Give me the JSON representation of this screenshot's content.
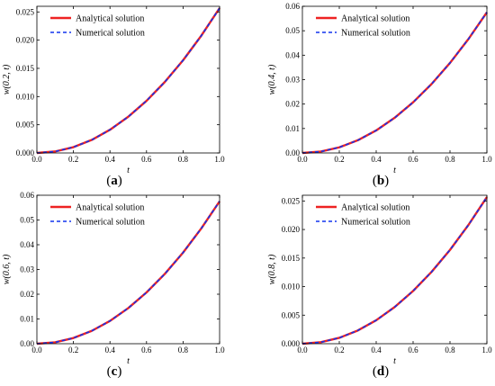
{
  "colors": {
    "analytical": "#ee2222",
    "numerical": "#1133ee",
    "axis": "#000000"
  },
  "chart_data": [
    {
      "type": "line",
      "panel_label": [
        "(",
        "a",
        ")"
      ],
      "xlabel": "t",
      "ylabel": "w(0.2, t)",
      "xlim": [
        0,
        1.0
      ],
      "ylim": [
        0,
        0.026
      ],
      "xticks": [
        "0.0",
        "0.2",
        "0.4",
        "0.6",
        "0.8",
        "1.0"
      ],
      "yticks": [
        "0.000",
        "0.005",
        "0.010",
        "0.015",
        "0.020",
        "0.025"
      ],
      "grid": false,
      "legend": "top-left",
      "x": [
        0,
        0.1,
        0.2,
        0.3,
        0.4,
        0.5,
        0.6,
        0.7,
        0.8,
        0.9,
        1.0
      ],
      "series": [
        {
          "name": "Analytical solution",
          "style": "solid",
          "values": [
            0,
            0.00026,
            0.00103,
            0.00231,
            0.00411,
            0.00642,
            0.00924,
            0.01258,
            0.01643,
            0.0208,
            0.02568
          ]
        },
        {
          "name": "Numerical solution",
          "style": "dashed",
          "values": [
            0,
            0.00026,
            0.00103,
            0.00231,
            0.00411,
            0.00642,
            0.00924,
            0.01258,
            0.01643,
            0.0208,
            0.02568
          ]
        }
      ]
    },
    {
      "type": "line",
      "panel_label": [
        "(",
        "b",
        ")"
      ],
      "xlabel": "t",
      "ylabel": "w(0.4, t)",
      "xlim": [
        0,
        1.0
      ],
      "ylim": [
        0,
        0.06
      ],
      "xticks": [
        "0.0",
        "0.2",
        "0.4",
        "0.6",
        "0.8",
        "1.0"
      ],
      "yticks": [
        "0.00",
        "0.01",
        "0.02",
        "0.03",
        "0.04",
        "0.05",
        "0.06"
      ],
      "grid": false,
      "legend": "top-left",
      "x": [
        0,
        0.1,
        0.2,
        0.3,
        0.4,
        0.5,
        0.6,
        0.7,
        0.8,
        0.9,
        1.0
      ],
      "series": [
        {
          "name": "Analytical solution",
          "style": "solid",
          "values": [
            0,
            0.00057,
            0.0023,
            0.00518,
            0.00921,
            0.01439,
            0.02072,
            0.0282,
            0.03683,
            0.04661,
            0.05755
          ]
        },
        {
          "name": "Numerical solution",
          "style": "dashed",
          "values": [
            0,
            0.00057,
            0.0023,
            0.00518,
            0.00921,
            0.01439,
            0.02072,
            0.0282,
            0.03683,
            0.04661,
            0.05755
          ]
        }
      ]
    },
    {
      "type": "line",
      "panel_label": [
        "(",
        "c",
        ")"
      ],
      "xlabel": "t",
      "ylabel": "w(0.6, t)",
      "xlim": [
        0,
        1.0
      ],
      "ylim": [
        0,
        0.06
      ],
      "xticks": [
        "0.0",
        "0.2",
        "0.4",
        "0.6",
        "0.8",
        "1.0"
      ],
      "yticks": [
        "0.00",
        "0.01",
        "0.02",
        "0.03",
        "0.04",
        "0.05",
        "0.06"
      ],
      "grid": false,
      "legend": "top-left",
      "x": [
        0,
        0.1,
        0.2,
        0.3,
        0.4,
        0.5,
        0.6,
        0.7,
        0.8,
        0.9,
        1.0
      ],
      "series": [
        {
          "name": "Analytical solution",
          "style": "solid",
          "values": [
            0,
            0.00057,
            0.0023,
            0.00518,
            0.00921,
            0.01439,
            0.02072,
            0.0282,
            0.03683,
            0.04661,
            0.05755
          ]
        },
        {
          "name": "Numerical solution",
          "style": "dashed",
          "values": [
            0,
            0.00057,
            0.0023,
            0.00518,
            0.00921,
            0.01439,
            0.02072,
            0.0282,
            0.03683,
            0.04661,
            0.05755
          ]
        }
      ]
    },
    {
      "type": "line",
      "panel_label": [
        "(",
        "d",
        ")"
      ],
      "xlabel": "t",
      "ylabel": "w(0.8, t)",
      "xlim": [
        0,
        1.0
      ],
      "ylim": [
        0,
        0.026
      ],
      "xticks": [
        "0.0",
        "0.2",
        "0.4",
        "0.6",
        "0.8",
        "1.0"
      ],
      "yticks": [
        "0.000",
        "0.005",
        "0.010",
        "0.015",
        "0.020",
        "0.025"
      ],
      "grid": false,
      "legend": "top-left",
      "x": [
        0,
        0.1,
        0.2,
        0.3,
        0.4,
        0.5,
        0.6,
        0.7,
        0.8,
        0.9,
        1.0
      ],
      "series": [
        {
          "name": "Analytical solution",
          "style": "solid",
          "values": [
            0,
            0.00026,
            0.00103,
            0.00231,
            0.00411,
            0.00642,
            0.00924,
            0.01258,
            0.01643,
            0.0208,
            0.02568
          ]
        },
        {
          "name": "Numerical solution",
          "style": "dashed",
          "values": [
            0,
            0.00026,
            0.00103,
            0.00231,
            0.00411,
            0.00642,
            0.00924,
            0.01258,
            0.01643,
            0.0208,
            0.02568
          ]
        }
      ]
    }
  ]
}
